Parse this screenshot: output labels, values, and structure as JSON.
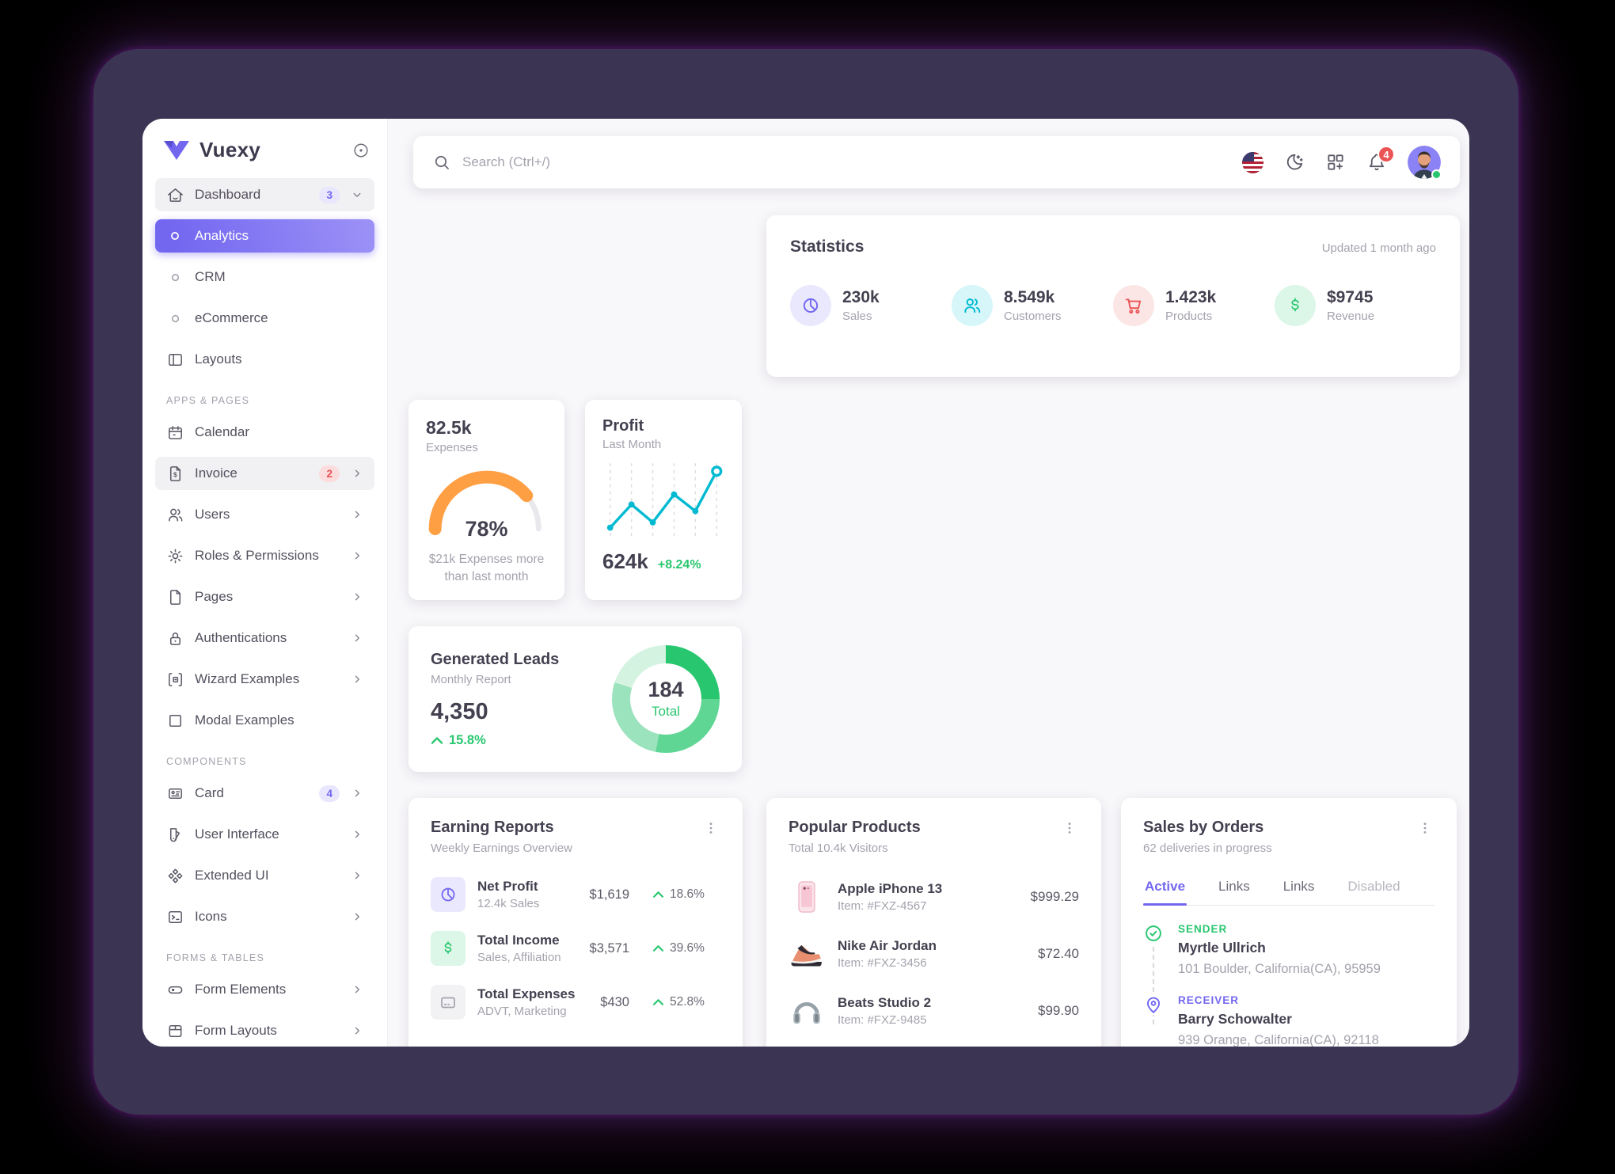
{
  "brand": {
    "name": "Vuexy"
  },
  "topbar": {
    "search_placeholder": "Search (Ctrl+/)",
    "notification_count": "4"
  },
  "sidebar": {
    "dashboard": {
      "label": "Dashboard",
      "badge": "3"
    },
    "analytics": "Analytics",
    "crm": "CRM",
    "ecommerce": "eCommerce",
    "layouts": "Layouts",
    "section_apps": "APPS & PAGES",
    "calendar": "Calendar",
    "invoice": {
      "label": "Invoice",
      "badge": "2"
    },
    "users": "Users",
    "roles": "Roles & Permissions",
    "pages": "Pages",
    "auth": "Authentications",
    "wizard": "Wizard Examples",
    "modal": "Modal Examples",
    "section_components": "COMPONENTS",
    "card": {
      "label": "Card",
      "badge": "4"
    },
    "user_interface": "User Interface",
    "extended_ui": "Extended UI",
    "icons": "Icons",
    "section_forms": "FORMS & TABLES",
    "form_elements": "Form Elements",
    "form_layouts": "Form Layouts"
  },
  "statistics": {
    "title": "Statistics",
    "updated": "Updated 1 month ago",
    "items": [
      {
        "value": "230k",
        "label": "Sales",
        "color": "#7367f0"
      },
      {
        "value": "8.549k",
        "label": "Customers",
        "color": "#00bad1"
      },
      {
        "value": "1.423k",
        "label": "Products",
        "color": "#ea5455"
      },
      {
        "value": "$9745",
        "label": "Revenue",
        "color": "#28c76f"
      }
    ]
  },
  "expenses": {
    "value": "82.5k",
    "label": "Expenses",
    "percent": "78%",
    "gauge_percent": 78,
    "gauge_color": "#ff9f43",
    "note": "$21k Expenses more than last month"
  },
  "profit": {
    "title": "Profit",
    "subtitle": "Last Month",
    "value": "624k",
    "change": "+8.24%",
    "chart": {
      "type": "line",
      "color": "#00bad1",
      "values": [
        10,
        45,
        18,
        60,
        35,
        95
      ]
    }
  },
  "leads": {
    "title": "Generated Leads",
    "subtitle": "Monthly Report",
    "value": "4,350",
    "change": "15.8%",
    "total": "184",
    "total_label": "Total",
    "segments": [
      {
        "value": 25,
        "color": "#28c76f"
      },
      {
        "value": 28,
        "color": "#60d695"
      },
      {
        "value": 27,
        "color": "#9be3bc"
      },
      {
        "value": 20,
        "color": "#d4f3e1"
      }
    ]
  },
  "earning_reports": {
    "title": "Earning Reports",
    "subtitle": "Weekly Earnings Overview",
    "rows": [
      {
        "title": "Net Profit",
        "subtitle": "12.4k Sales",
        "amount": "$1,619",
        "change": "18.6%"
      },
      {
        "title": "Total Income",
        "subtitle": "Sales, Affiliation",
        "amount": "$3,571",
        "change": "39.6%"
      },
      {
        "title": "Total Expenses",
        "subtitle": "ADVT, Marketing",
        "amount": "$430",
        "change": "52.8%"
      }
    ]
  },
  "popular_products": {
    "title": "Popular Products",
    "subtitle": "Total 10.4k Visitors",
    "rows": [
      {
        "name": "Apple iPhone 13",
        "item": "Item: #FXZ-4567",
        "price": "$999.29"
      },
      {
        "name": "Nike Air Jordan",
        "item": "Item: #FXZ-3456",
        "price": "$72.40"
      },
      {
        "name": "Beats Studio 2",
        "item": "Item: #FXZ-9485",
        "price": "$99.90"
      }
    ]
  },
  "sales_by_orders": {
    "title": "Sales by Orders",
    "subtitle": "62 deliveries in progress",
    "tabs": [
      "Active",
      "Links",
      "Links",
      "Disabled"
    ],
    "timeline": [
      {
        "type": "SENDER",
        "name": "Myrtle Ullrich",
        "address": "101 Boulder, California(CA), 95959"
      },
      {
        "type": "RECEIVER",
        "name": "Barry Schowalter",
        "address": "939 Orange, California(CA), 92118"
      }
    ]
  }
}
